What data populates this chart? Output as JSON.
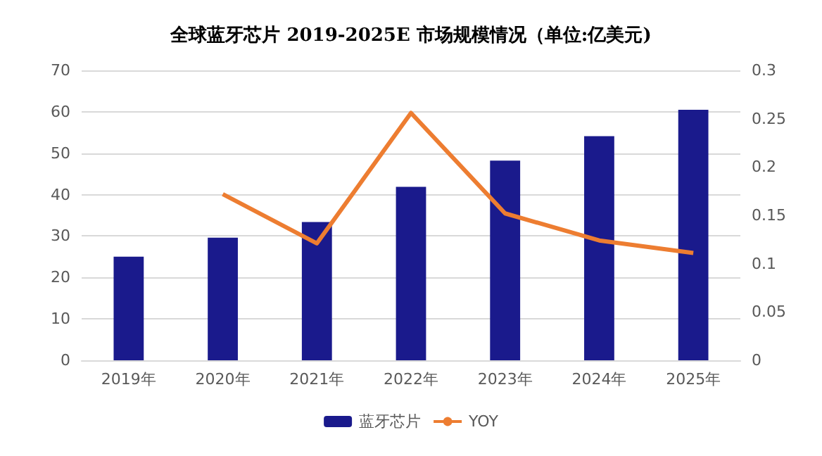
{
  "chart_data": {
    "type": "bar",
    "title": "全球蓝牙芯片 2019-2025E 市场规模情况（单位:亿美元)",
    "categories": [
      "2019年",
      "2020年",
      "2021年",
      "2022年",
      "2023年",
      "2024年",
      "2025年"
    ],
    "series": [
      {
        "name": "蓝牙芯片",
        "color": "#1a1a8c",
        "values": [
          25.0,
          29.6,
          33.4,
          41.9,
          48.2,
          54.1,
          60.5
        ]
      },
      {
        "name": "YOY",
        "type": "line",
        "axis": "y2",
        "color": "#ed7d31",
        "values": [
          null,
          0.172,
          0.121,
          0.256,
          0.152,
          0.124,
          0.111
        ]
      }
    ],
    "ylim": [
      0,
      70
    ],
    "yticks": [
      0,
      10,
      20,
      30,
      40,
      50,
      60,
      70
    ],
    "y2lim": [
      0,
      0.3
    ],
    "y2ticks": [
      0,
      0.05,
      0.1,
      0.15,
      0.2,
      0.25,
      0.3
    ],
    "grid": "y",
    "legend": "bottom",
    "marker": "none"
  }
}
